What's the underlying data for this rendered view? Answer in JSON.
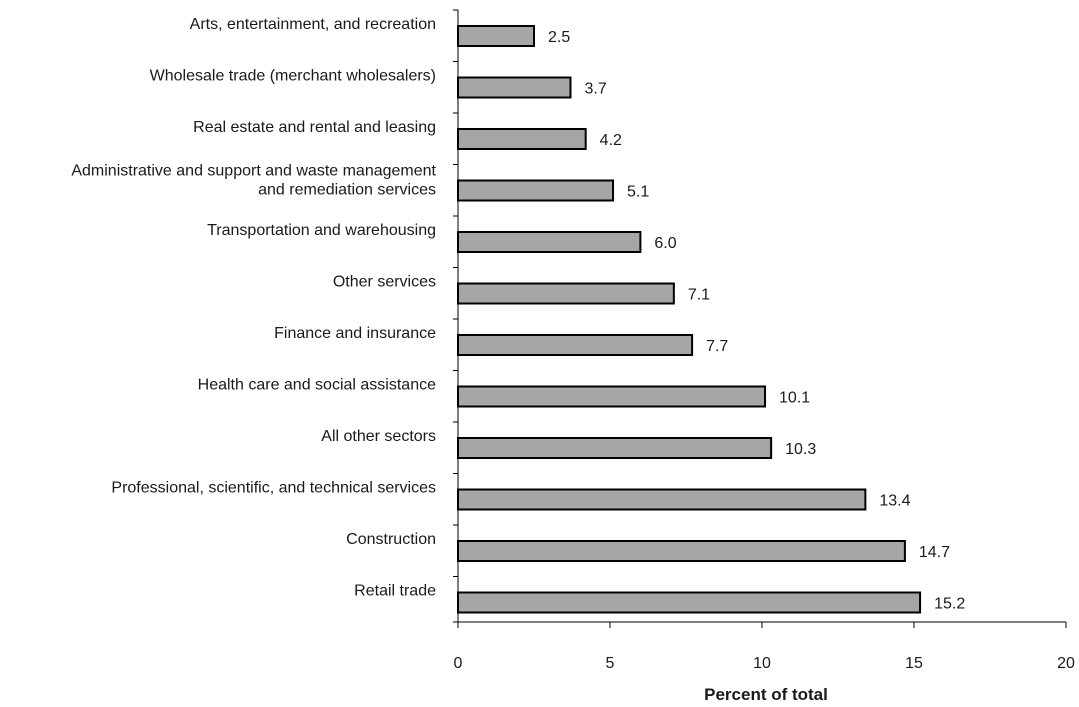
{
  "colors": {
    "bar_fill": "#a6a6a6",
    "bar_stroke": "#000000",
    "axis": "#000000"
  },
  "chart_data": {
    "type": "bar",
    "orientation": "horizontal",
    "categories": [
      "Arts, entertainment, and recreation",
      "Wholesale trade (merchant wholesalers)",
      "Real estate and rental and leasing",
      "Administrative and support and waste management and remediation services",
      "Transportation and warehousing",
      "Other services",
      "Finance and insurance",
      "Health care and social assistance",
      "All other sectors",
      "Professional, scientific, and technical services",
      "Construction",
      "Retail trade"
    ],
    "category_lines": [
      [
        "Arts, entertainment, and recreation"
      ],
      [
        "Wholesale trade (merchant wholesalers)"
      ],
      [
        "Real estate and rental and leasing"
      ],
      [
        "Administrative and support and waste management",
        "and remediation services"
      ],
      [
        "Transportation and warehousing"
      ],
      [
        "Other services"
      ],
      [
        "Finance and insurance"
      ],
      [
        "Health care and social assistance"
      ],
      [
        "All other sectors"
      ],
      [
        "Professional, scientific, and technical services"
      ],
      [
        "Construction"
      ],
      [
        "Retail trade"
      ]
    ],
    "values": [
      2.5,
      3.7,
      4.2,
      5.1,
      6.0,
      7.1,
      7.7,
      10.1,
      10.3,
      13.4,
      14.7,
      15.2
    ],
    "value_labels": [
      "2.5",
      "3.7",
      "4.2",
      "5.1",
      "6.0",
      "7.1",
      "7.7",
      "10.1",
      "10.3",
      "13.4",
      "14.7",
      "15.2"
    ],
    "xlim": [
      0,
      20
    ],
    "xticks": [
      0,
      5,
      10,
      15,
      20
    ],
    "xlabel": "Percent of total",
    "ylabel": "",
    "title": "",
    "grid": false,
    "legend": "none"
  }
}
